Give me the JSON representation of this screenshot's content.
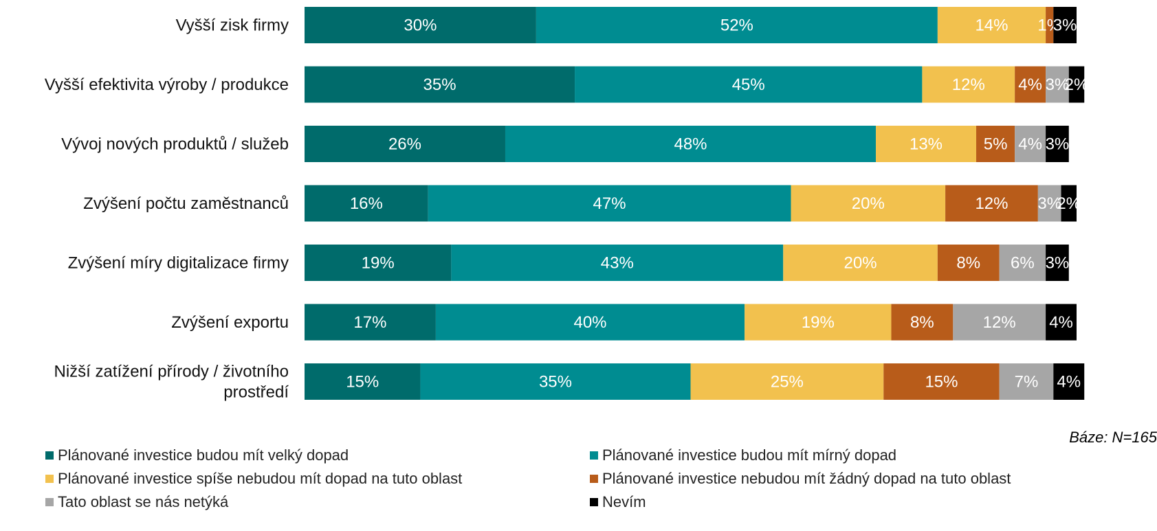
{
  "chart_data": {
    "type": "bar",
    "orientation": "horizontal",
    "stacked": true,
    "categories": [
      "Vyšší zisk firmy",
      "Vyšší efektivita výroby / produkce",
      "Vývoj nových produktů / služeb",
      "Zvýšení počtu zaměstnanců",
      "Zvýšení míry digitalizace firmy",
      "Zvýšení exportu",
      "Nižší zatížení přírody / životního prostředí"
    ],
    "series": [
      {
        "name": "Plánované investice budou mít velký dopad",
        "color": "#006B6B",
        "values": [
          30,
          35,
          26,
          16,
          19,
          17,
          15
        ]
      },
      {
        "name": "Plánované investice budou mít mírný dopad",
        "color": "#008C91",
        "values": [
          52,
          45,
          48,
          47,
          43,
          40,
          35
        ]
      },
      {
        "name": "Plánované investice spíše nebudou mít dopad na tuto oblast",
        "color": "#F2C14E",
        "values": [
          14,
          12,
          13,
          20,
          20,
          19,
          25
        ]
      },
      {
        "name": "Plánované investice nebudou mít žádný dopad na tuto oblast",
        "color": "#B85C1A",
        "values": [
          1,
          4,
          5,
          12,
          8,
          8,
          15
        ]
      },
      {
        "name": "Tato oblast se nás netýká",
        "color": "#A6A6A6",
        "values": [
          0,
          3,
          4,
          3,
          6,
          12,
          7
        ]
      },
      {
        "name": "Nevím",
        "color": "#000000",
        "values": [
          3,
          2,
          3,
          2,
          3,
          4,
          4
        ]
      }
    ],
    "value_suffix": "%",
    "legend_position": "bottom",
    "grid": false,
    "note": "Báze: N=165"
  }
}
